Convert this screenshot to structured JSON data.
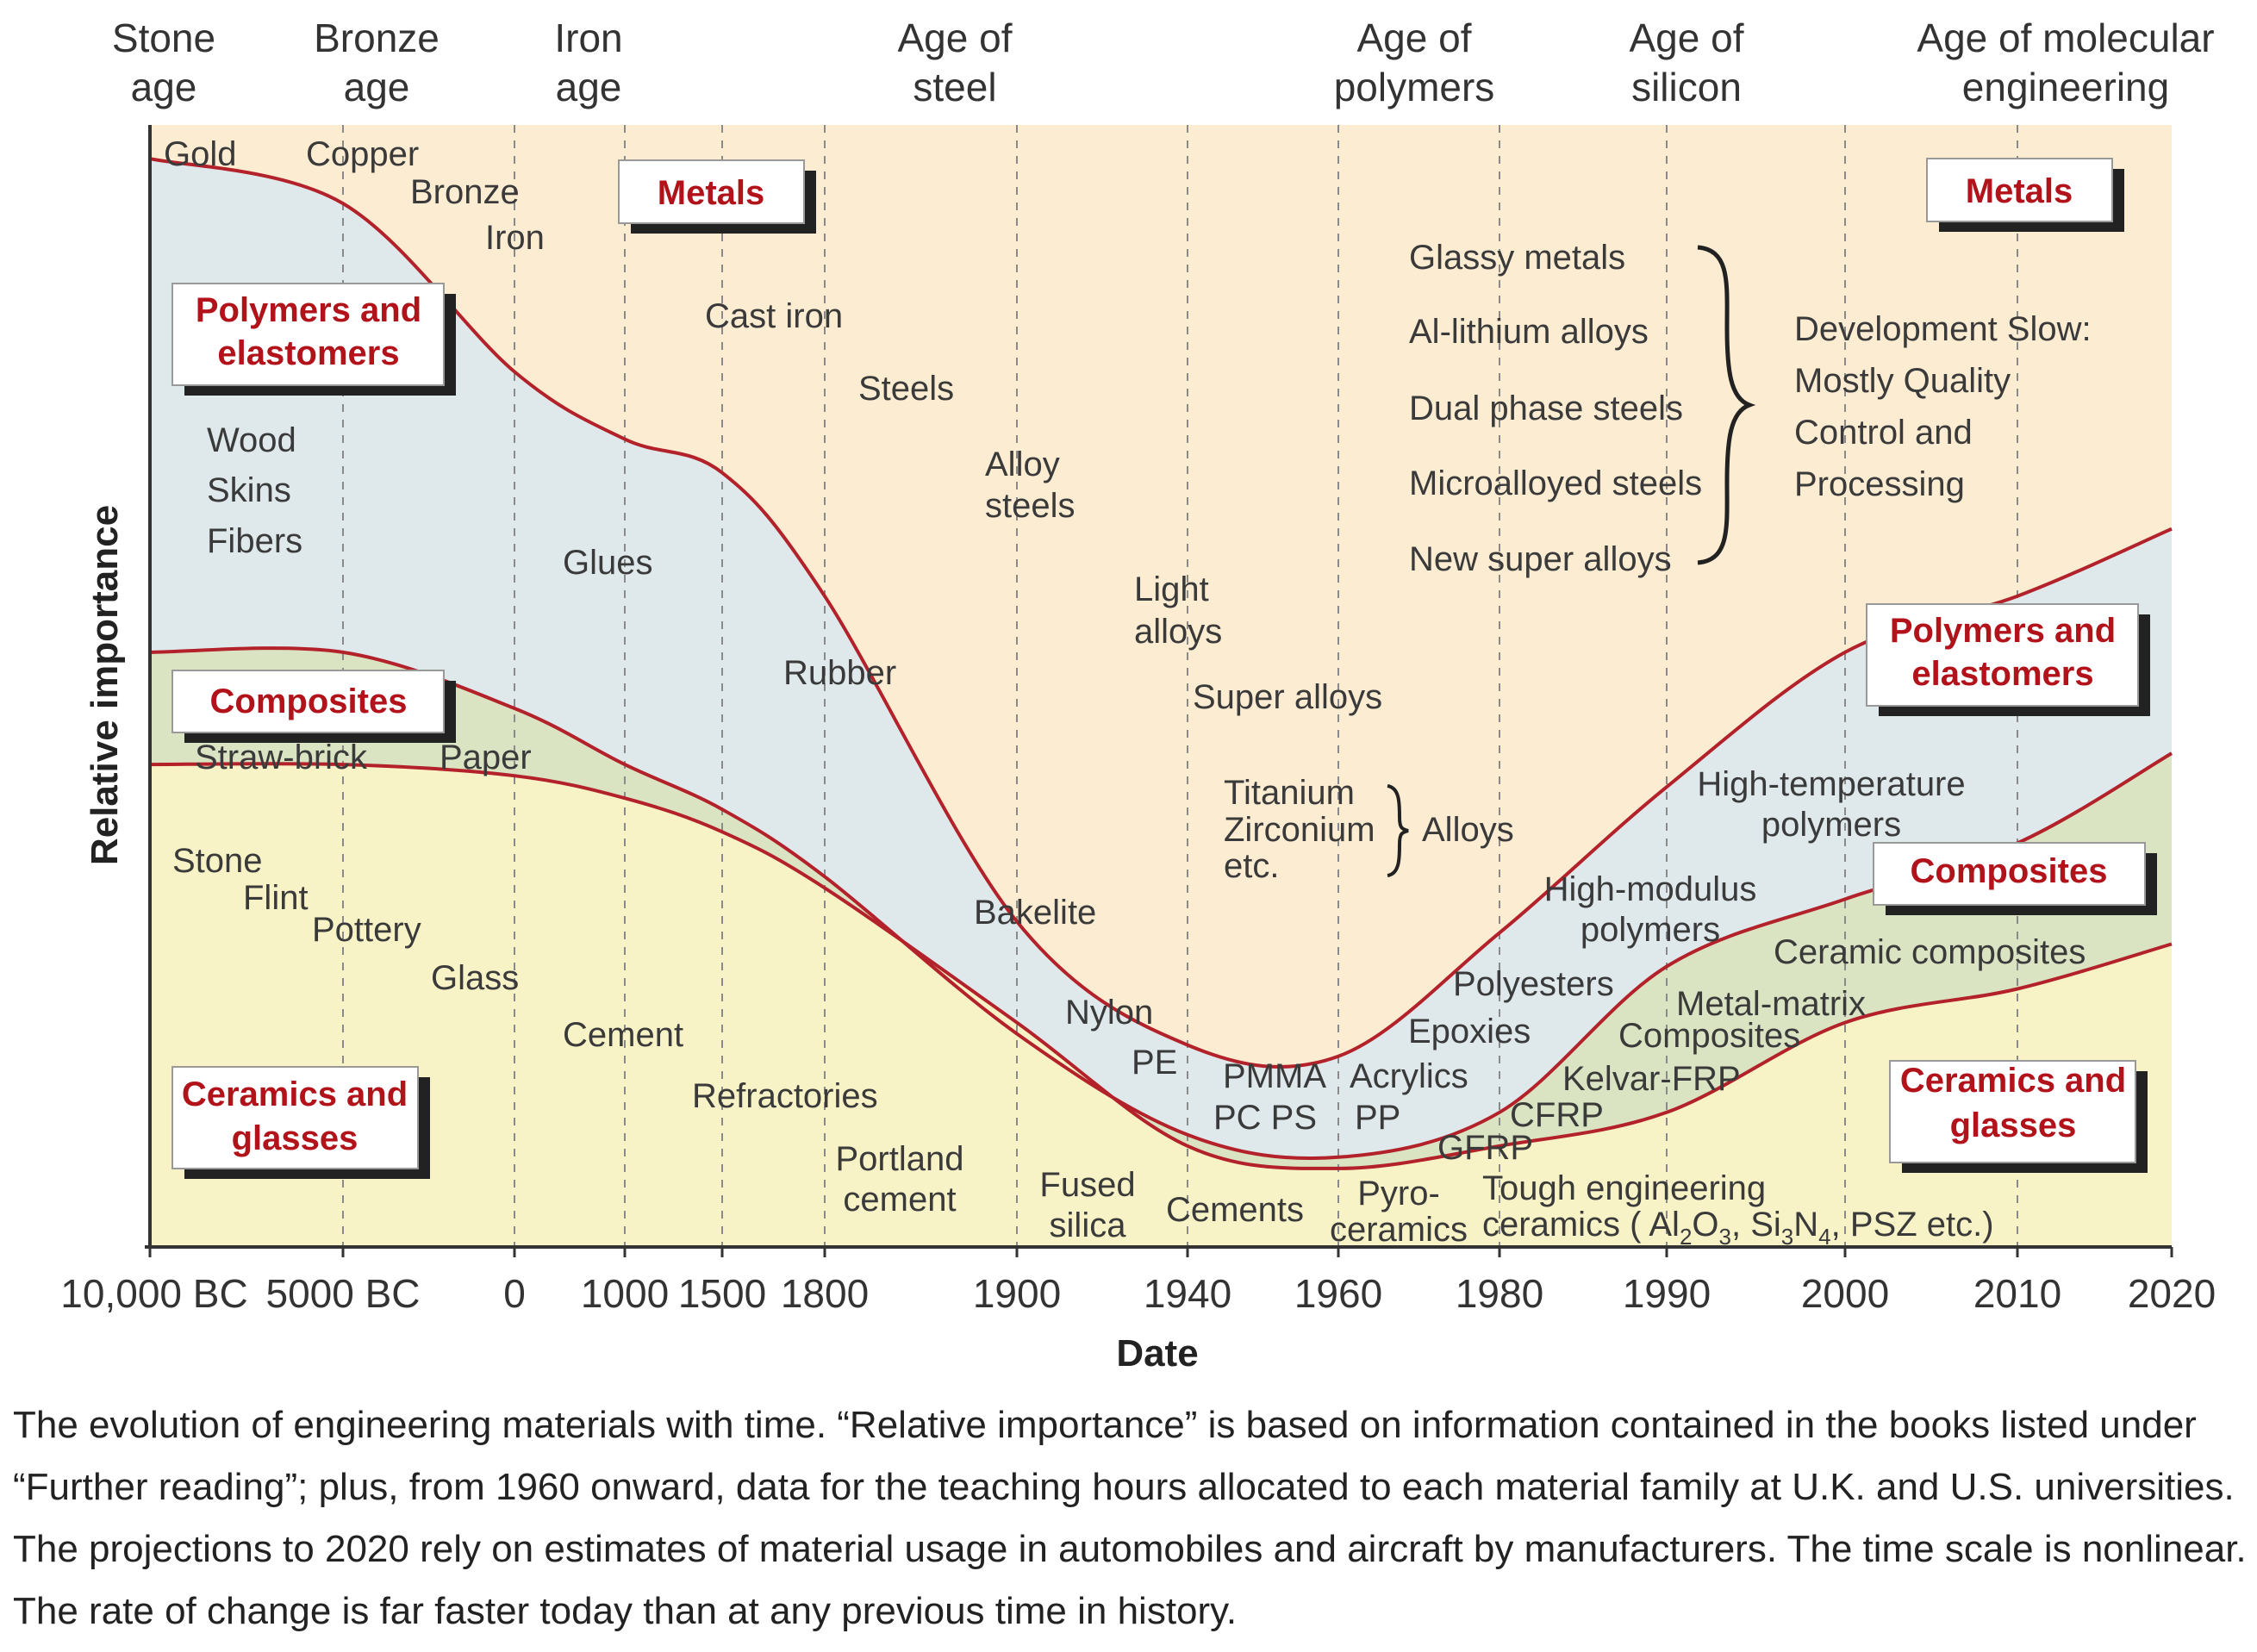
{
  "chart_data": {
    "type": "area",
    "title": "",
    "xlabel": "Date",
    "ylabel": "Relative importance",
    "x_scale": "nonlinear",
    "x_ticks": [
      "10,000 BC",
      "5000 BC",
      "0",
      "1000",
      "1500",
      "1800",
      "1900",
      "1940",
      "1960",
      "1980",
      "1990",
      "2000",
      "2010",
      "2020"
    ],
    "eras": [
      {
        "line1": "Stone",
        "line2": "age"
      },
      {
        "line1": "Bronze",
        "line2": "age"
      },
      {
        "line1": "Iron",
        "line2": "age"
      },
      {
        "line1": "Age of",
        "line2": "steel"
      },
      {
        "line1": "Age of",
        "line2": "polymers"
      },
      {
        "line1": "Age of",
        "line2": "silicon"
      },
      {
        "line1": "Age of molecular",
        "line2": "engineering"
      }
    ],
    "boundaries": [
      {
        "name": "ceramics-composites",
        "points": [
          [
            "10,000 BC",
            0.43
          ],
          [
            "5000 BC",
            0.43
          ],
          [
            "0",
            0.42
          ],
          [
            "1000",
            0.4
          ],
          [
            "1500",
            0.37
          ],
          [
            "1800",
            0.32
          ],
          [
            "1900",
            0.2
          ],
          [
            "1940",
            0.09
          ],
          [
            "1960",
            0.07
          ],
          [
            "1980",
            0.09
          ],
          [
            "1990",
            0.12
          ],
          [
            "2000",
            0.2
          ],
          [
            "2010",
            0.23
          ],
          [
            "2020",
            0.27
          ]
        ]
      },
      {
        "name": "composites-polymers",
        "points": [
          [
            "10,000 BC",
            0.53
          ],
          [
            "5000 BC",
            0.53
          ],
          [
            "0",
            0.48
          ],
          [
            "1000",
            0.43
          ],
          [
            "1500",
            0.39
          ],
          [
            "1800",
            0.33
          ],
          [
            "1900",
            0.19
          ],
          [
            "1940",
            0.1
          ],
          [
            "1960",
            0.08
          ],
          [
            "1980",
            0.12
          ],
          [
            "1990",
            0.25
          ],
          [
            "2000",
            0.31
          ],
          [
            "2010",
            0.36
          ],
          [
            "2020",
            0.44
          ]
        ]
      },
      {
        "name": "polymers-metals",
        "points": [
          [
            "10,000 BC",
            0.97
          ],
          [
            "5000 BC",
            0.93
          ],
          [
            "0",
            0.78
          ],
          [
            "1000",
            0.72
          ],
          [
            "1500",
            0.69
          ],
          [
            "1800",
            0.58
          ],
          [
            "1900",
            0.29
          ],
          [
            "1940",
            0.18
          ],
          [
            "1960",
            0.17
          ],
          [
            "1980",
            0.28
          ],
          [
            "1990",
            0.41
          ],
          [
            "2000",
            0.53
          ],
          [
            "2010",
            0.58
          ],
          [
            "2020",
            0.64
          ]
        ]
      }
    ],
    "regions": [
      {
        "name": "Metals",
        "color": "#fcecd2"
      },
      {
        "name": "Polymers and elastomers",
        "color": "#dfe9ec"
      },
      {
        "name": "Composites",
        "color": "#dae4c3"
      },
      {
        "name": "Ceramics and glasses",
        "color": "#f8f3c7"
      }
    ],
    "boundary_color": "#b3222a",
    "family_boxes": {
      "metals_left": "Metals",
      "metals_right": "Metals",
      "polymers_left": {
        "line1": "Polymers and",
        "line2": "elastomers"
      },
      "polymers_right": {
        "line1": "Polymers and",
        "line2": "elastomers"
      },
      "composites_left": "Composites",
      "composites_right": "Composites",
      "ceramics_left": {
        "line1": "Ceramics and",
        "line2": "glasses"
      },
      "ceramics_right": {
        "line1": "Ceramics and",
        "line2": "glasses"
      }
    },
    "annotations": {
      "gold": "Gold",
      "copper": "Copper",
      "bronze": "Bronze",
      "iron": "Iron",
      "cast_iron": "Cast iron",
      "steels": "Steels",
      "alloy_steels_1": "Alloy",
      "alloy_steels_2": "steels",
      "light_alloys_1": "Light",
      "light_alloys_2": "alloys",
      "super_alloys": "Super alloys",
      "titanium": "Titanium",
      "zirconium": "Zirconium",
      "etc": "etc.",
      "alloys": "Alloys",
      "glassy_metals": "Glassy metals",
      "al_lithium": "Al-lithium alloys",
      "dual_phase": "Dual phase steels",
      "microalloyed": "Microalloyed steels",
      "new_super": "New super alloys",
      "dev1": "Development Slow:",
      "dev2": "Mostly Quality",
      "dev3": "Control and",
      "dev4": "Processing",
      "wood": "Wood",
      "skins": "Skins",
      "fibers": "Fibers",
      "glues": "Glues",
      "rubber": "Rubber",
      "bakelite": "Bakelite",
      "nylon": "Nylon",
      "pe": "PE",
      "pmma": "PMMA",
      "acrylics": "Acrylics",
      "pc_ps": "PC  PS",
      "pp": "PP",
      "polyesters": "Polyesters",
      "epoxies": "Epoxies",
      "hm_poly_1": "High-modulus",
      "hm_poly_2": "polymers",
      "ht_poly_1": "High-temperature",
      "ht_poly_2": "polymers",
      "straw_brick": "Straw-brick",
      "paper": "Paper",
      "kelvar": "Kelvar-FRP",
      "cfrp": "CFRP",
      "gfrp": "GFRP",
      "mm_1": "Metal-matrix",
      "mm_2": "Composites",
      "ceramic_composites": "Ceramic composites",
      "stone": "Stone",
      "flint": "Flint",
      "pottery": "Pottery",
      "glass": "Glass",
      "cement": "Cement",
      "refractories": "Refractories",
      "portland_1": "Portland",
      "portland_2": "cement",
      "fused_1": "Fused",
      "fused_2": "silica",
      "cements": "Cements",
      "pyro_1": "Pyro-",
      "pyro_2": "ceramics",
      "tough_1": "Tough engineering",
      "tough_2_pre": "ceramics ( Al",
      "al_sub1": "2",
      "al_sub2": "O",
      "al_sub3": "3",
      "si_pre": ", Si",
      "si_sub1": "3",
      "si_n": "N",
      "si_sub2": "4",
      "tough_2_post": ", PSZ etc.)"
    }
  },
  "caption": {
    "line1": "The evolution of engineering materials with time. “Relative importance” is based on information contained in the books listed under",
    "line2": "“Further reading”; plus, from 1960 onward, data for the teaching hours allocated to each material family at U.K. and U.S. universities.",
    "line3": "The projections to 2020 rely on estimates of material usage in automobiles and aircraft by manufacturers. The time scale is nonlinear.",
    "line4": "The rate of change is far faster today than at any previous time in history."
  }
}
